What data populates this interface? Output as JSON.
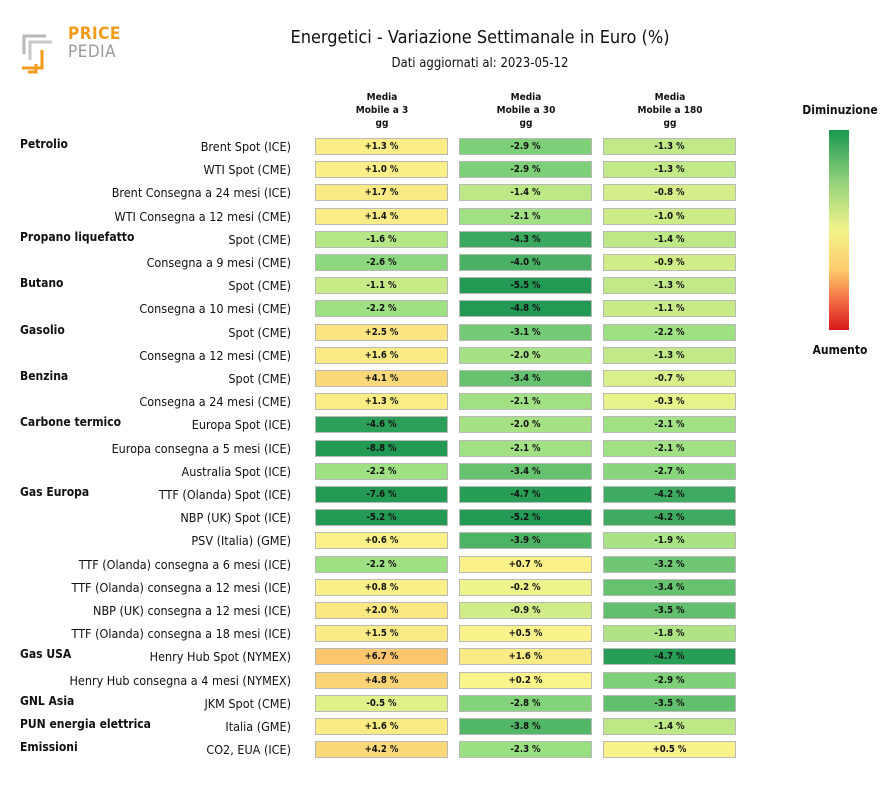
{
  "logo": {
    "line1": "PRICE",
    "line2": "PEDIA"
  },
  "chart_data": {
    "type": "table",
    "title": "Energetici - Variazione Settimanale in Euro (%)",
    "subtitle": "Dati aggiornati al: 2023-05-12",
    "columns": [
      "Media\nMobile a 3\ngg",
      "Media\nMobile a 30\ngg",
      "Media\nMobile a 180\ngg"
    ],
    "legend": {
      "top": "Diminuzione",
      "bottom": "Aumento"
    },
    "rows": [
      {
        "group": "Petrolio",
        "label": "Brent Spot (ICE)",
        "values": [
          1.3,
          -2.9,
          -1.3
        ],
        "text": [
          "+1.3 %",
          "-2.9 %",
          "-1.3 %"
        ]
      },
      {
        "group": "",
        "label": "WTI Spot (CME)",
        "values": [
          1.0,
          -2.9,
          -1.3
        ],
        "text": [
          "+1.0 %",
          "-2.9 %",
          "-1.3 %"
        ]
      },
      {
        "group": "",
        "label": "Brent Consegna a 24 mesi (ICE)",
        "values": [
          1.7,
          -1.4,
          -0.8
        ],
        "text": [
          "+1.7 %",
          "-1.4 %",
          "-0.8 %"
        ]
      },
      {
        "group": "",
        "label": "WTI Consegna a 12 mesi (CME)",
        "values": [
          1.4,
          -2.1,
          -1.0
        ],
        "text": [
          "+1.4 %",
          "-2.1 %",
          "-1.0 %"
        ]
      },
      {
        "group": "Propano liquefatto",
        "label": "Spot (CME)",
        "values": [
          -1.6,
          -4.3,
          -1.4
        ],
        "text": [
          "-1.6 %",
          "-4.3 %",
          "-1.4 %"
        ]
      },
      {
        "group": "",
        "label": "Consegna a 9 mesi (CME)",
        "values": [
          -2.6,
          -4.0,
          -0.9
        ],
        "text": [
          "-2.6 %",
          "-4.0 %",
          "-0.9 %"
        ]
      },
      {
        "group": "Butano",
        "label": "Spot (CME)",
        "values": [
          -1.1,
          -5.5,
          -1.3
        ],
        "text": [
          "-1.1 %",
          "-5.5 %",
          "-1.3 %"
        ]
      },
      {
        "group": "",
        "label": "Consegna a 10 mesi (CME)",
        "values": [
          -2.2,
          -4.8,
          -1.1
        ],
        "text": [
          "-2.2 %",
          "-4.8 %",
          "-1.1 %"
        ]
      },
      {
        "group": "Gasolio",
        "label": "Spot (CME)",
        "values": [
          2.5,
          -3.1,
          -2.2
        ],
        "text": [
          "+2.5 %",
          "-3.1 %",
          "-2.2 %"
        ]
      },
      {
        "group": "",
        "label": "Consegna a 12 mesi (CME)",
        "values": [
          1.6,
          -2.0,
          -1.3
        ],
        "text": [
          "+1.6 %",
          "-2.0 %",
          "-1.3 %"
        ]
      },
      {
        "group": "Benzina",
        "label": "Spot (CME)",
        "values": [
          4.1,
          -3.4,
          -0.7
        ],
        "text": [
          "+4.1 %",
          "-3.4 %",
          "-0.7 %"
        ]
      },
      {
        "group": "",
        "label": "Consegna a 24 mesi (CME)",
        "values": [
          1.3,
          -2.1,
          -0.3
        ],
        "text": [
          "+1.3 %",
          "-2.1 %",
          "-0.3 %"
        ]
      },
      {
        "group": "Carbone termico",
        "label": "Europa Spot (ICE)",
        "values": [
          -4.6,
          -2.0,
          -2.1
        ],
        "text": [
          "-4.6 %",
          "-2.0 %",
          "-2.1 %"
        ]
      },
      {
        "group": "",
        "label": "Europa consegna a 5 mesi (ICE)",
        "values": [
          -8.8,
          -2.1,
          -2.1
        ],
        "text": [
          "-8.8 %",
          "-2.1 %",
          "-2.1 %"
        ]
      },
      {
        "group": "",
        "label": "Australia Spot (ICE)",
        "values": [
          -2.2,
          -3.4,
          -2.7
        ],
        "text": [
          "-2.2 %",
          "-3.4 %",
          "-2.7 %"
        ]
      },
      {
        "group": "Gas Europa",
        "label": "TTF (Olanda) Spot (ICE)",
        "values": [
          -7.6,
          -4.7,
          -4.2
        ],
        "text": [
          "-7.6 %",
          "-4.7 %",
          "-4.2 %"
        ]
      },
      {
        "group": "",
        "label": "NBP (UK) Spot (ICE)",
        "values": [
          -5.2,
          -5.2,
          -4.2
        ],
        "text": [
          "-5.2 %",
          "-5.2 %",
          "-4.2 %"
        ]
      },
      {
        "group": "",
        "label": "PSV (Italia) (GME)",
        "values": [
          0.6,
          -3.9,
          -1.9
        ],
        "text": [
          "+0.6 %",
          "-3.9 %",
          "-1.9 %"
        ]
      },
      {
        "group": "",
        "label": "TTF (Olanda) consegna a 6 mesi (ICE)",
        "values": [
          -2.2,
          0.7,
          -3.2
        ],
        "text": [
          "-2.2 %",
          "+0.7 %",
          "-3.2 %"
        ]
      },
      {
        "group": "",
        "label": "TTF (Olanda) consegna a 12 mesi (ICE)",
        "values": [
          0.8,
          -0.2,
          -3.4
        ],
        "text": [
          "+0.8 %",
          "-0.2 %",
          "-3.4 %"
        ]
      },
      {
        "group": "",
        "label": "NBP (UK) consegna a 12 mesi (ICE)",
        "values": [
          2.0,
          -0.9,
          -3.5
        ],
        "text": [
          "+2.0 %",
          "-0.9 %",
          "-3.5 %"
        ]
      },
      {
        "group": "",
        "label": "TTF (Olanda) consegna a 18 mesi (ICE)",
        "values": [
          1.5,
          0.5,
          -1.8
        ],
        "text": [
          "+1.5 %",
          "+0.5 %",
          "-1.8 %"
        ]
      },
      {
        "group": "Gas USA",
        "label": "Henry Hub Spot (NYMEX)",
        "values": [
          6.7,
          1.6,
          -4.7
        ],
        "text": [
          "+6.7 %",
          "+1.6 %",
          "-4.7 %"
        ]
      },
      {
        "group": "",
        "label": "Henry Hub consegna a 4 mesi (NYMEX)",
        "values": [
          4.8,
          0.2,
          -2.9
        ],
        "text": [
          "+4.8 %",
          "+0.2 %",
          "-2.9 %"
        ]
      },
      {
        "group": "GNL Asia",
        "label": "JKM Spot (CME)",
        "values": [
          -0.5,
          -2.8,
          -3.5
        ],
        "text": [
          "-0.5 %",
          "-2.8 %",
          "-3.5 %"
        ]
      },
      {
        "group": "PUN energia elettrica",
        "label": "Italia (GME)",
        "values": [
          1.6,
          -3.8,
          -1.4
        ],
        "text": [
          "+1.6 %",
          "-3.8 %",
          "-1.4 %"
        ]
      },
      {
        "group": "Emissioni",
        "label": "CO2, EUA (ICE)",
        "values": [
          4.2,
          -2.3,
          0.5
        ],
        "text": [
          "+4.2 %",
          "-2.3 %",
          "+0.5 %"
        ]
      }
    ]
  }
}
